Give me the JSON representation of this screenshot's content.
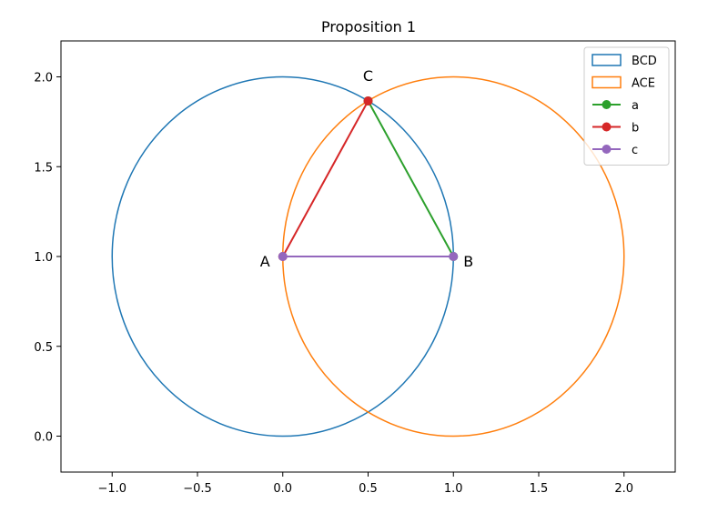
{
  "chart_data": {
    "type": "scatter",
    "title": "Proposition 1",
    "xlabel": "",
    "ylabel": "",
    "xlim": [
      -1.3,
      2.3
    ],
    "ylim": [
      -0.2,
      2.2
    ],
    "xticks": [
      -1.0,
      -0.5,
      0.0,
      0.5,
      1.0,
      1.5,
      2.0
    ],
    "xtick_labels": [
      "−1.0",
      "−0.5",
      "0.0",
      "0.5",
      "1.0",
      "1.5",
      "2.0"
    ],
    "yticks": [
      0.0,
      0.5,
      1.0,
      1.5,
      2.0
    ],
    "ytick_labels": [
      "0.0",
      "0.5",
      "1.0",
      "1.5",
      "2.0"
    ],
    "grid": false,
    "legend_position": "top-right",
    "circles": [
      {
        "name": "BCD",
        "center": [
          0,
          1
        ],
        "radius": 1,
        "color": "#1f77b4"
      },
      {
        "name": "ACE",
        "center": [
          1,
          1
        ],
        "radius": 1,
        "color": "#ff7f0e"
      }
    ],
    "segments": [
      {
        "name": "a",
        "points": [
          [
            1,
            1
          ],
          [
            0.5,
            1.866
          ]
        ],
        "color": "#2ca02c"
      },
      {
        "name": "b",
        "points": [
          [
            0,
            1
          ],
          [
            0.5,
            1.866
          ]
        ],
        "color": "#d62728"
      },
      {
        "name": "c",
        "points": [
          [
            0,
            1
          ],
          [
            1,
            1
          ]
        ],
        "color": "#9467bd"
      }
    ],
    "point_labels": [
      {
        "text": "A",
        "x": 0,
        "y": 1,
        "anchor": "left"
      },
      {
        "text": "B",
        "x": 1,
        "y": 1,
        "anchor": "right"
      },
      {
        "text": "C",
        "x": 0.5,
        "y": 1.866,
        "anchor": "top"
      }
    ]
  }
}
